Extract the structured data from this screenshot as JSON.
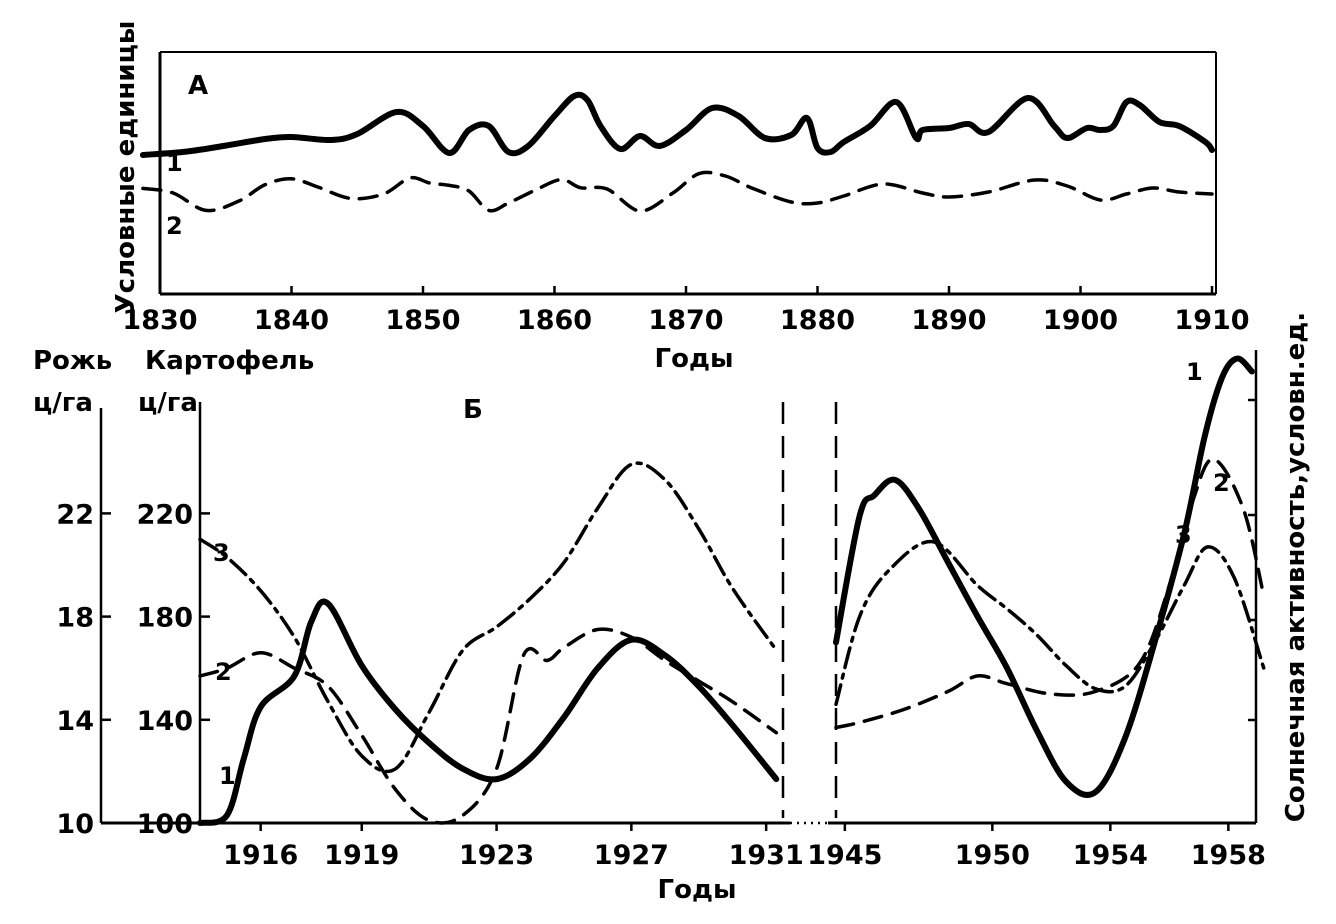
{
  "chart_data": [
    {
      "panel": "А",
      "type": "line",
      "ylabel": "Условные единицы",
      "xlabel": "Годы",
      "xlim": [
        1830,
        1910
      ],
      "x_ticks": [
        1830,
        1840,
        1850,
        1860,
        1870,
        1880,
        1890,
        1900,
        1910
      ],
      "series": [
        {
          "name": "1",
          "style": "solid",
          "x": [
            1828.7,
            1832,
            1835,
            1838,
            1840,
            1843,
            1845,
            1848,
            1850,
            1852,
            1853.5,
            1855,
            1856.5,
            1858,
            1860,
            1861.5,
            1862.5,
            1863.5,
            1865,
            1866.5,
            1868,
            1870,
            1872,
            1874,
            1876,
            1878,
            1879.2,
            1880,
            1881,
            1882,
            1884,
            1886,
            1887.5,
            1888,
            1890,
            1891.5,
            1893,
            1896,
            1898,
            1899,
            1900.5,
            1901.5,
            1902.5,
            1903.5,
            1904.5,
            1906,
            1907.5,
            1909.5,
            1910
          ],
          "y": [
            6.95,
            7.12,
            7.42,
            7.75,
            7.85,
            7.7,
            8.0,
            9.1,
            8.4,
            7.05,
            8.2,
            8.4,
            7.1,
            7.4,
            8.9,
            9.9,
            9.7,
            8.4,
            7.25,
            7.9,
            7.4,
            8.2,
            9.3,
            8.9,
            7.8,
            7.95,
            8.8,
            7.3,
            7.1,
            7.6,
            8.4,
            9.6,
            7.8,
            8.2,
            8.3,
            8.5,
            8.1,
            9.8,
            8.4,
            7.8,
            8.3,
            8.2,
            8.4,
            9.6,
            9.45,
            8.6,
            8.4,
            7.6,
            7.2
          ]
        },
        {
          "name": "2",
          "style": "dashed",
          "x": [
            1828.7,
            1831,
            1833.5,
            1836,
            1838,
            1840,
            1842,
            1844.5,
            1847,
            1849,
            1850.5,
            1852,
            1853.5,
            1855,
            1856.5,
            1858.5,
            1860.5,
            1862,
            1864,
            1866.5,
            1869,
            1871,
            1873,
            1875,
            1878,
            1880,
            1882,
            1885,
            1888,
            1890,
            1893,
            1896.5,
            1899,
            1901.5,
            1903.5,
            1905.5,
            1907.5,
            1910
          ],
          "y": [
            5.28,
            5.05,
            4.18,
            4.65,
            5.47,
            5.76,
            5.35,
            4.78,
            5.0,
            5.8,
            5.55,
            5.43,
            5.15,
            4.18,
            4.55,
            5.18,
            5.72,
            5.31,
            5.25,
            4.15,
            5.05,
            6.02,
            5.9,
            5.3,
            4.6,
            4.55,
            4.9,
            5.5,
            5.05,
            4.85,
            5.1,
            5.7,
            5.4,
            4.7,
            5.0,
            5.3,
            5.1,
            5.0
          ]
        }
      ]
    },
    {
      "panel": "Б",
      "type": "line",
      "xlabel": "Годы",
      "left_axis_1": {
        "label": [
          "Рожь",
          "ц/га"
        ],
        "ticks": [
          10,
          14,
          18,
          22
        ]
      },
      "left_axis_2": {
        "label": [
          "Картофель",
          "ц/га"
        ],
        "ticks": [
          100,
          140,
          180,
          220
        ]
      },
      "right_axis": {
        "label": "Солнечная активность,условн.ед."
      },
      "x_ticks": [
        1916,
        1919,
        1923,
        1927,
        1931,
        1945,
        1950,
        1954,
        1958
      ],
      "segments": [
        [
          1914.2,
          1931.3
        ],
        [
          1944.7,
          1959.2
        ]
      ],
      "series": [
        {
          "name": "1",
          "style": "solid",
          "data": [
            {
              "x": [
                1914.2,
                1915,
                1915.5,
                1916,
                1917,
                1917.5,
                1918,
                1919,
                1920,
                1921,
                1922,
                1923,
                1924,
                1925,
                1926,
                1927,
                1928,
                1929,
                1930,
                1931.3
              ],
              "y": [
                100,
                103,
                125,
                145,
                157,
                178,
                185,
                161,
                144,
                131,
                121,
                117,
                125,
                141,
                160,
                171,
                165,
                153,
                138,
                117
              ]
            },
            {
              "x": [
                1944.7,
                1945.5,
                1946,
                1946.7,
                1947.5,
                1948.5,
                1949.5,
                1950.5,
                1951.5,
                1952.5,
                1953.5,
                1954.5,
                1955.5,
                1956.5,
                1957.2,
                1957.8,
                1958.3,
                1958.8
              ],
              "y": [
                170,
                219,
                227,
                233,
                222,
                201,
                180,
                160,
                136,
                116,
                112,
                133,
                170,
                212,
                250,
                273,
                280,
                275
              ]
            }
          ]
        },
        {
          "name": "2",
          "style": "dashed",
          "data": [
            {
              "x": [
                1914.2,
                1915,
                1916,
                1917,
                1918,
                1919,
                1920,
                1921,
                1922,
                1923,
                1923.8,
                1924.5,
                1925,
                1926,
                1927,
                1928,
                1929,
                1930,
                1931.3
              ],
              "y": [
                157,
                160,
                166,
                160,
                153,
                134,
                113,
                101,
                103,
                121,
                165,
                163,
                168,
                175,
                172,
                163,
                155,
                147,
                135
              ]
            },
            {
              "x": [
                1944.7,
                1945.5,
                1947,
                1948.5,
                1949.5,
                1950.5,
                1952,
                1953.5,
                1955,
                1956,
                1956.8,
                1957.5,
                1958.5,
                1959.2
              ],
              "y": [
                137,
                139,
                144,
                151,
                157,
                154,
                150,
                151,
                162,
                192,
                225,
                241,
                222,
                188
              ]
            }
          ]
        },
        {
          "name": "3",
          "style": "dash-dot",
          "data": [
            {
              "x": [
                1914.2,
                1915,
                1916,
                1917,
                1918,
                1919,
                1920,
                1921,
                1922,
                1923,
                1924,
                1925,
                1926,
                1927,
                1928,
                1929,
                1930,
                1931.3
              ],
              "y": [
                210,
                203,
                190,
                172,
                147,
                126,
                121,
                143,
                167,
                176,
                187,
                201,
                222,
                239,
                233,
                214,
                191,
                167
              ]
            },
            {
              "x": [
                1944.7,
                1945.5,
                1946.5,
                1948,
                1949.5,
                1950.5,
                1951.5,
                1952.5,
                1953.5,
                1954.5,
                1955.5,
                1956.5,
                1957.3,
                1958.2,
                1959.2
              ],
              "y": [
                146,
                180,
                198,
                209,
                192,
                183,
                173,
                161,
                152,
                153,
                170,
                192,
                207,
                195,
                160
              ]
            }
          ]
        }
      ]
    }
  ],
  "panel_a": {
    "panel_label": "А",
    "ylabel": "Условные единицы",
    "xlabel": "Годы",
    "series_labels": [
      "1",
      "2"
    ]
  },
  "panel_b": {
    "panel_label": "Б",
    "xlabel": "Годы",
    "rye_label": "Рожь",
    "rye_unit": "ц/га",
    "potato_label": "Картофель",
    "potato_unit": "ц/га",
    "right_label": "Солнечная активность,условн.ед.",
    "left_series_labels": [
      "1",
      "2",
      "3"
    ],
    "right_series_labels": [
      "1",
      "2",
      "3"
    ]
  }
}
